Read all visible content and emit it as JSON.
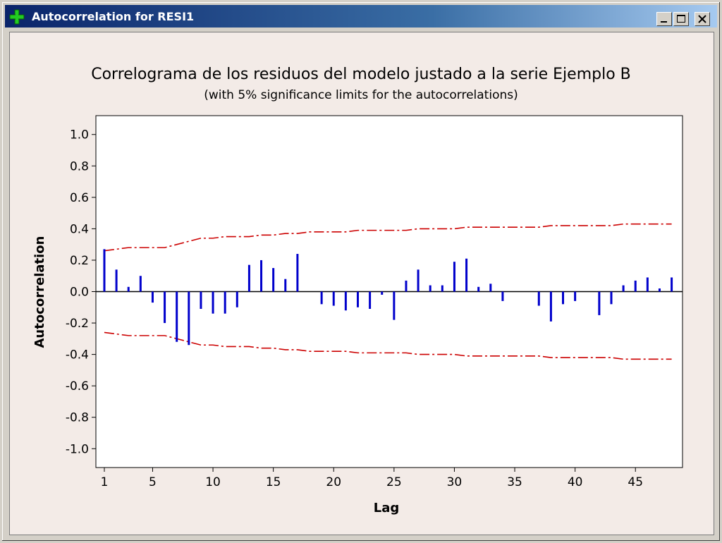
{
  "window": {
    "title": "Autocorrelation for RESI1",
    "icon": "green-plus-icon",
    "controls": [
      "minimize-icon",
      "maximize-icon",
      "close-icon"
    ]
  },
  "colors": {
    "bars": "#0000cc",
    "limits": "#cc0000",
    "background": "#f3ebe7",
    "plot_area": "#ffffff"
  },
  "chart_data": {
    "type": "bar",
    "title": "Correlograma de los residuos del modelo justado a la serie Ejemplo B",
    "subtitle": "(with 5% significance limits for the autocorrelations)",
    "xlabel": "Lag",
    "ylabel": "Autocorrelation",
    "xlim": [
      0.3,
      48.9
    ],
    "ylim": [
      -1.12,
      1.12
    ],
    "xticks": [
      1,
      5,
      10,
      15,
      20,
      25,
      30,
      35,
      40,
      45
    ],
    "yticks": [
      1.0,
      0.8,
      0.6,
      0.4,
      0.2,
      0.0,
      -0.2,
      -0.4,
      -0.6,
      -0.8,
      -1.0
    ],
    "ytick_labels": [
      "1.0",
      "0.8",
      "0.6",
      "0.4",
      "0.2",
      "0.0",
      "-0.2",
      "-0.4",
      "-0.6",
      "-0.8",
      "-1.0"
    ],
    "lags": [
      1,
      2,
      3,
      4,
      5,
      6,
      7,
      8,
      9,
      10,
      11,
      12,
      13,
      14,
      15,
      16,
      17,
      18,
      19,
      20,
      21,
      22,
      23,
      24,
      25,
      26,
      27,
      28,
      29,
      30,
      31,
      32,
      33,
      34,
      35,
      36,
      37,
      38,
      39,
      40,
      41,
      42,
      43,
      44,
      45,
      46,
      47,
      48
    ],
    "acf": [
      0.27,
      0.14,
      0.03,
      0.1,
      -0.07,
      -0.2,
      -0.32,
      -0.34,
      -0.11,
      -0.14,
      -0.14,
      -0.1,
      0.17,
      0.2,
      0.15,
      0.08,
      0.24,
      0.0,
      -0.08,
      -0.09,
      -0.12,
      -0.1,
      -0.11,
      -0.02,
      -0.18,
      0.07,
      0.14,
      0.04,
      0.04,
      0.19,
      0.21,
      0.03,
      0.05,
      -0.06,
      0.0,
      0.0,
      -0.09,
      -0.19,
      -0.08,
      -0.06,
      0.0,
      -0.15,
      -0.08,
      0.04,
      0.07,
      0.09,
      0.02,
      0.09
    ],
    "limits": [
      0.26,
      0.27,
      0.28,
      0.28,
      0.28,
      0.28,
      0.3,
      0.32,
      0.34,
      0.34,
      0.35,
      0.35,
      0.35,
      0.36,
      0.36,
      0.37,
      0.37,
      0.38,
      0.38,
      0.38,
      0.38,
      0.39,
      0.39,
      0.39,
      0.39,
      0.39,
      0.4,
      0.4,
      0.4,
      0.4,
      0.41,
      0.41,
      0.41,
      0.41,
      0.41,
      0.41,
      0.41,
      0.42,
      0.42,
      0.42,
      0.42,
      0.42,
      0.42,
      0.43,
      0.43,
      0.43,
      0.43,
      0.43
    ],
    "grid": false,
    "legend": "none"
  }
}
